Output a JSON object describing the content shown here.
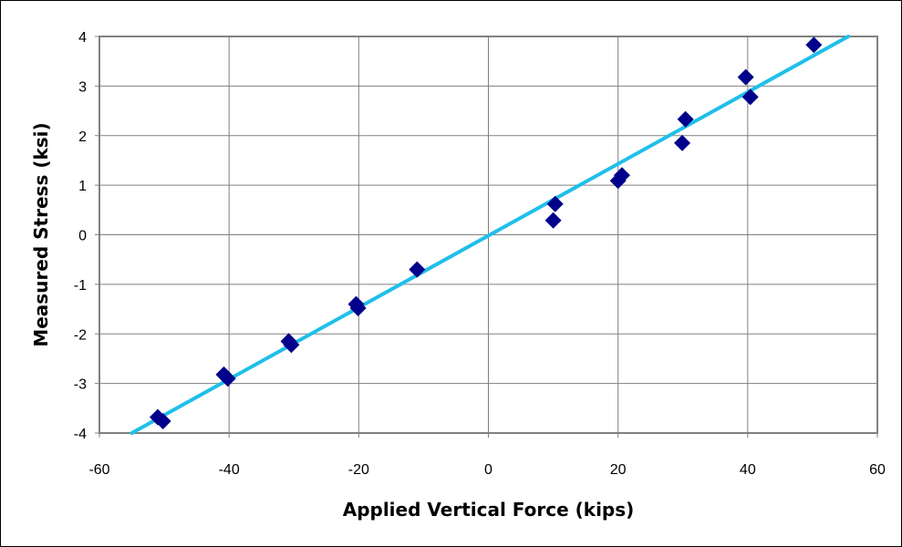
{
  "chart_data": {
    "type": "scatter",
    "title": "",
    "xlabel": "Applied Vertical Force (kips)",
    "ylabel": "Measured Stress (ksi)",
    "xlim": [
      -60,
      60
    ],
    "ylim": [
      -4,
      4
    ],
    "xticks": [
      -60,
      -40,
      -20,
      0,
      20,
      40,
      60
    ],
    "yticks": [
      -4,
      -3,
      -2,
      -1,
      0,
      1,
      2,
      3,
      4
    ],
    "xtick_labels": [
      "-60",
      "-40",
      "-20",
      "0",
      "20",
      "40",
      "60"
    ],
    "ytick_labels": [
      "-4",
      "-3",
      "-2",
      "-1",
      "0",
      "1",
      "2",
      "3",
      "4"
    ],
    "grid": true,
    "legend": "none",
    "series": [
      {
        "marker": "diamond",
        "color": "#00008B",
        "points": [
          {
            "x": -51,
            "y": -3.68
          },
          {
            "x": -50.2,
            "y": -3.76
          },
          {
            "x": -40.8,
            "y": -2.82
          },
          {
            "x": -40.2,
            "y": -2.9
          },
          {
            "x": -30.8,
            "y": -2.15
          },
          {
            "x": -30.4,
            "y": -2.22
          },
          {
            "x": -20.4,
            "y": -1.4
          },
          {
            "x": -20.1,
            "y": -1.48
          },
          {
            "x": -11,
            "y": -0.7
          },
          {
            "x": 10,
            "y": 0.29
          },
          {
            "x": 10.3,
            "y": 0.62
          },
          {
            "x": 20,
            "y": 1.09
          },
          {
            "x": 20.6,
            "y": 1.2
          },
          {
            "x": 29.9,
            "y": 1.85
          },
          {
            "x": 30.4,
            "y": 2.33
          },
          {
            "x": 39.7,
            "y": 3.18
          },
          {
            "x": 40.4,
            "y": 2.78
          },
          {
            "x": 50.2,
            "y": 3.83
          }
        ]
      }
    ],
    "trendline": {
      "color": "#1FBFEA",
      "x": [
        -55,
        55.5
      ],
      "y": [
        -4,
        4
      ]
    },
    "colors": {
      "plot_background": "#ffffff",
      "grid": "#808080",
      "plot_border": "#808080"
    }
  }
}
